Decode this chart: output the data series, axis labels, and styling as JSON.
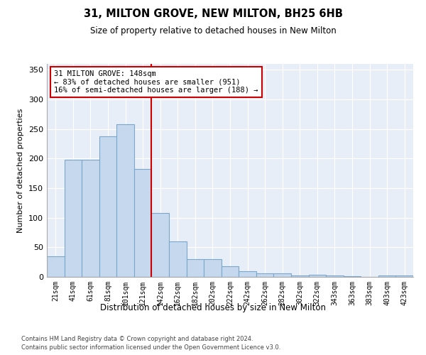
{
  "title1": "31, MILTON GROVE, NEW MILTON, BH25 6HB",
  "title2": "Size of property relative to detached houses in New Milton",
  "xlabel": "Distribution of detached houses by size in New Milton",
  "ylabel": "Number of detached properties",
  "categories": [
    "21sqm",
    "41sqm",
    "61sqm",
    "81sqm",
    "101sqm",
    "121sqm",
    "142sqm",
    "162sqm",
    "182sqm",
    "202sqm",
    "222sqm",
    "242sqm",
    "262sqm",
    "282sqm",
    "302sqm",
    "322sqm",
    "343sqm",
    "363sqm",
    "383sqm",
    "403sqm",
    "423sqm"
  ],
  "values": [
    35,
    198,
    198,
    238,
    258,
    183,
    108,
    60,
    30,
    30,
    18,
    10,
    6,
    6,
    2,
    4,
    2,
    1,
    0,
    2,
    2
  ],
  "bar_color": "#c5d8ed",
  "bar_edge_color": "#7ba7cc",
  "bg_color": "#e8eef7",
  "grid_color": "#ffffff",
  "property_line_index": 6,
  "annotation_line1": "31 MILTON GROVE: 148sqm",
  "annotation_line2": "← 83% of detached houses are smaller (951)",
  "annotation_line3": "16% of semi-detached houses are larger (188) →",
  "annotation_box_facecolor": "#ffffff",
  "annotation_box_edgecolor": "#cc0000",
  "ylim": [
    0,
    360
  ],
  "yticks": [
    0,
    50,
    100,
    150,
    200,
    250,
    300,
    350
  ],
  "footer1": "Contains HM Land Registry data © Crown copyright and database right 2024.",
  "footer2": "Contains public sector information licensed under the Open Government Licence v3.0."
}
